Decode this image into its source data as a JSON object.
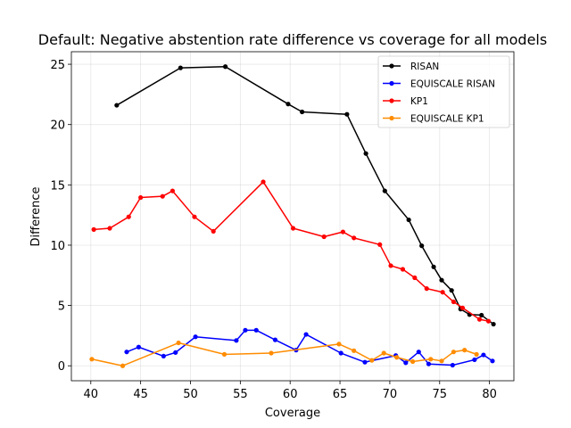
{
  "chart_data": {
    "type": "line",
    "title": "Default: Negative abstention rate difference vs coverage for all models",
    "xlabel": "Coverage",
    "ylabel": "Difference",
    "xlim": [
      38.05,
      82.45
    ],
    "ylim": [
      -1.24,
      26.04
    ],
    "xticks": [
      40,
      45,
      50,
      55,
      60,
      65,
      70,
      75,
      80
    ],
    "yticks": [
      0,
      5,
      10,
      15,
      20,
      25
    ],
    "grid": true,
    "legend": "top-right",
    "series": [
      {
        "name": "RISAN",
        "color": "#000000",
        "x": [
          42.6,
          49.0,
          53.5,
          59.8,
          61.2,
          65.7,
          67.6,
          69.5,
          71.9,
          73.2,
          74.4,
          75.2,
          76.2,
          77.1,
          78.0,
          79.2,
          80.4
        ],
        "y": [
          21.6,
          24.7,
          24.8,
          21.7,
          21.05,
          20.85,
          17.6,
          14.5,
          12.1,
          9.95,
          8.2,
          7.1,
          6.25,
          4.7,
          4.25,
          4.2,
          3.45
        ]
      },
      {
        "name": "EQUISCALE RISAN",
        "color": "#0000ff",
        "x": [
          43.6,
          44.8,
          47.3,
          48.5,
          50.5,
          54.6,
          55.5,
          56.6,
          58.5,
          60.6,
          61.6,
          65.1,
          67.5,
          70.6,
          71.6,
          72.9,
          73.9,
          76.3,
          78.5,
          79.4,
          80.3
        ],
        "y": [
          1.15,
          1.55,
          0.8,
          1.1,
          2.4,
          2.1,
          2.95,
          2.95,
          2.15,
          1.3,
          2.6,
          1.05,
          0.3,
          0.85,
          0.25,
          1.15,
          0.15,
          0.05,
          0.5,
          0.9,
          0.4
        ]
      },
      {
        "name": "KP1",
        "color": "#ff0000",
        "x": [
          40.3,
          41.9,
          43.8,
          45.0,
          47.2,
          48.2,
          50.4,
          52.3,
          57.3,
          60.3,
          63.4,
          65.3,
          66.4,
          69.0,
          70.1,
          71.3,
          72.5,
          73.7,
          75.3,
          76.4,
          77.3,
          79.0,
          79.9
        ],
        "y": [
          11.3,
          11.4,
          12.35,
          13.95,
          14.05,
          14.5,
          12.35,
          11.15,
          15.25,
          11.4,
          10.7,
          11.1,
          10.6,
          10.05,
          8.3,
          8.0,
          7.3,
          6.4,
          6.1,
          5.3,
          4.8,
          3.85,
          3.7
        ]
      },
      {
        "name": "EQUISCALE KP1",
        "color": "#ff8c00",
        "x": [
          40.1,
          43.2,
          48.8,
          53.4,
          58.1,
          64.9,
          66.4,
          68.2,
          69.4,
          70.7,
          72.3,
          74.1,
          75.2,
          76.4,
          77.5,
          78.7
        ],
        "y": [
          0.55,
          0.0,
          1.9,
          0.95,
          1.05,
          1.8,
          1.25,
          0.45,
          1.05,
          0.7,
          0.35,
          0.55,
          0.4,
          1.15,
          1.3,
          0.95
        ]
      }
    ]
  }
}
